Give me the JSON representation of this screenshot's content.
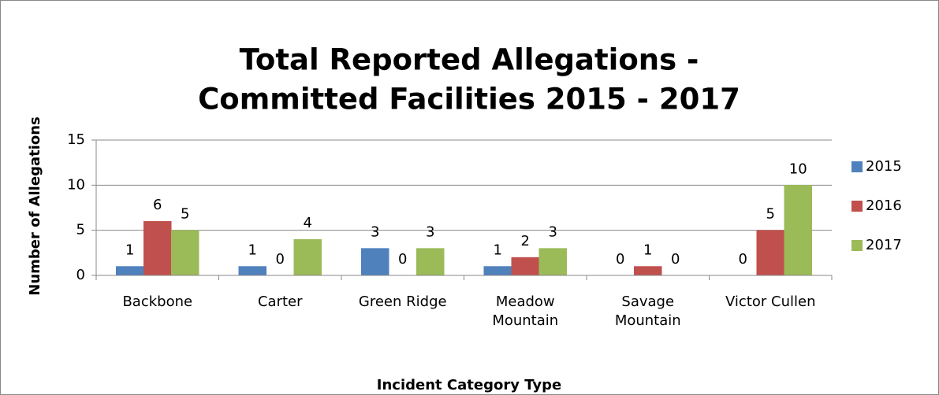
{
  "chart_data": {
    "type": "bar",
    "title": [
      "Total Reported Allegations -",
      "Committed Facilities 2015 - 2017"
    ],
    "xlabel": "Incident Category Type",
    "ylabel": "Number of Allegations",
    "categories": [
      "Backbone",
      "Carter",
      "Green Ridge",
      "Meadow Mountain",
      "Savage Mountain",
      "Victor Cullen"
    ],
    "series": [
      {
        "name": "2015",
        "color": "#4f81bd",
        "values": [
          1,
          1,
          3,
          1,
          0,
          0
        ]
      },
      {
        "name": "2016",
        "color": "#c0504d",
        "values": [
          6,
          0,
          0,
          2,
          1,
          5
        ]
      },
      {
        "name": "2017",
        "color": "#9bbb59",
        "values": [
          5,
          4,
          3,
          3,
          0,
          10
        ]
      }
    ],
    "ylim": [
      0,
      15
    ],
    "yticks": [
      0,
      5,
      10,
      15
    ],
    "grid": true,
    "legend": "right"
  }
}
